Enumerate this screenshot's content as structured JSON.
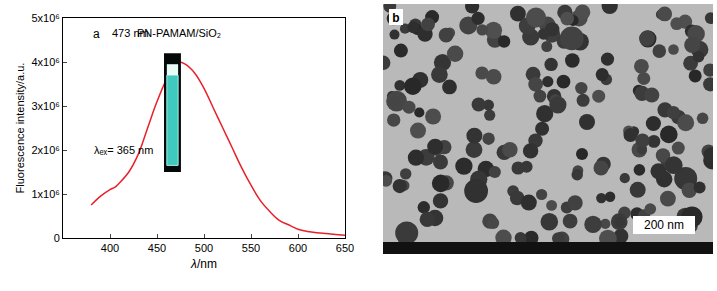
{
  "chart_data": {
    "type": "line",
    "panel_label": "a",
    "x_label": "λ/nm",
    "y_label": "Fluorescence intensity/a.u.",
    "annotations": [
      "473 nm",
      "PN-PAMAM/SiO₂",
      "λₑₓ= 365 nm"
    ],
    "x": [
      380,
      390,
      400,
      405,
      410,
      420,
      430,
      440,
      450,
      460,
      470,
      473,
      480,
      490,
      500,
      510,
      520,
      530,
      540,
      550,
      560,
      570,
      580,
      590,
      600,
      610,
      620,
      630,
      640,
      650
    ],
    "series": [
      {
        "name": "PN-PAMAM/SiO₂",
        "color": "#e8202a",
        "values": [
          750000,
          950000,
          1100000,
          1150000,
          1250000,
          1500000,
          1900000,
          2500000,
          3100000,
          3600000,
          3950000,
          4000000,
          3950000,
          3750000,
          3400000,
          2950000,
          2500000,
          2050000,
          1600000,
          1200000,
          850000,
          600000,
          400000,
          300000,
          200000,
          150000,
          120000,
          100000,
          80000,
          60000
        ]
      }
    ],
    "xlim": [
      350,
      650
    ],
    "xticks": [
      400,
      450,
      500,
      550,
      600,
      650
    ],
    "ylim": [
      0,
      5000000
    ],
    "yticks": [
      0,
      {
        "value": 1000000,
        "label": "1x10⁶"
      },
      {
        "value": 2000000,
        "label": "2x10⁶"
      },
      {
        "value": 3000000,
        "label": "3x10⁶"
      },
      {
        "value": 4000000,
        "label": "4x10⁶"
      },
      {
        "value": 5000000,
        "label": "5x10⁶"
      }
    ],
    "grid": false,
    "line_style": "solid"
  },
  "micrograph": {
    "panel_label": "b",
    "scale_bar": "200 nm"
  }
}
